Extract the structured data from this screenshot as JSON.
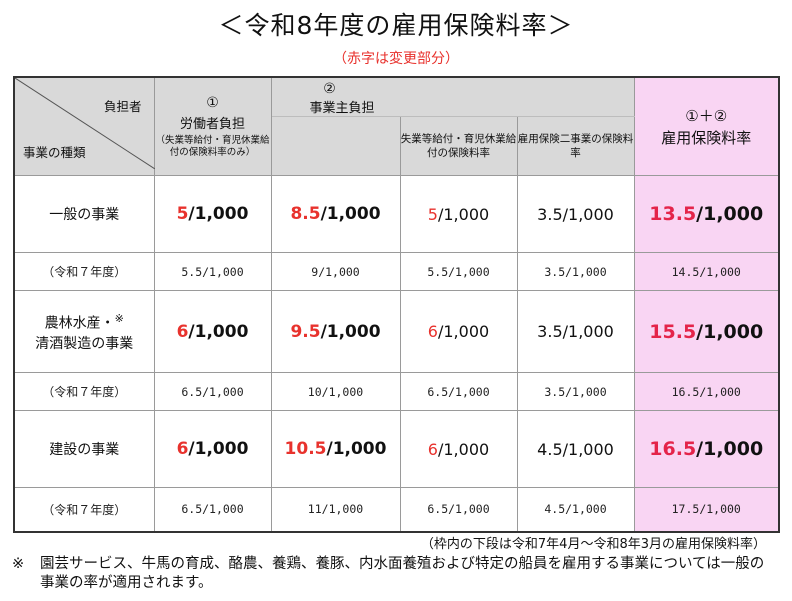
{
  "title": "＜令和8年度の雇用保険料率＞",
  "subtitle": "（赤字は変更部分）",
  "header": {
    "corner_payer": "負担者",
    "corner_kind": "事業の種類",
    "col1_num": "①",
    "col1_label": "労働者負担",
    "col1_note": "（失業等給付・育児休業給付の保険料率のみ）",
    "col2_num": "②",
    "col2_label": "事業主負担",
    "col2_sub1": "失業等給付・育児休業給付の保険料率",
    "col2_sub2": "雇用保険二事業の保険料率",
    "col3_formula": "①＋②",
    "col3_label": "雇用保険料率"
  },
  "rows": [
    {
      "category": "一般の事業",
      "worker_num": "5",
      "worker_den": "/1,000",
      "employer_num": "8.5",
      "employer_den": "/1,000",
      "emp_benefit_num": "5",
      "emp_benefit_den": "/1,000",
      "two_business": "3.5/1,000",
      "total_num": "13.5",
      "total_den": "/1,000",
      "prev_label": "（令和７年度）",
      "prev_worker": "5.5/1,000",
      "prev_employer": "9/1,000",
      "prev_emp_benefit": "5.5/1,000",
      "prev_two_business": "3.5/1,000",
      "prev_total": "14.5/1,000"
    },
    {
      "category_line1": "農林水産・",
      "category_mark": "※",
      "category_line2": "清酒製造の事業",
      "worker_num": "6",
      "worker_den": "/1,000",
      "employer_num": "9.5",
      "employer_den": "/1,000",
      "emp_benefit_num": "6",
      "emp_benefit_den": "/1,000",
      "two_business": "3.5/1,000",
      "total_num": "15.5",
      "total_den": "/1,000",
      "prev_label": "（令和７年度）",
      "prev_worker": "6.5/1,000",
      "prev_employer": "10/1,000",
      "prev_emp_benefit": "6.5/1,000",
      "prev_two_business": "3.5/1,000",
      "prev_total": "16.5/1,000"
    },
    {
      "category": "建設の事業",
      "worker_num": "6",
      "worker_den": "/1,000",
      "employer_num": "10.5",
      "employer_den": "/1,000",
      "emp_benefit_num": "6",
      "emp_benefit_den": "/1,000",
      "two_business": "4.5/1,000",
      "total_num": "16.5",
      "total_den": "/1,000",
      "prev_label": "（令和７年度）",
      "prev_worker": "6.5/1,000",
      "prev_employer": "11/1,000",
      "prev_emp_benefit": "6.5/1,000",
      "prev_two_business": "4.5/1,000",
      "prev_total": "17.5/1,000"
    }
  ],
  "footnote_period": "（枠内の下段は令和7年4月～令和8年3月の雇用保険料率）",
  "footnote_mark": "※",
  "footnote_text": "園芸サービス、牛馬の育成、酪農、養鶏、養豚、内水面養殖および特定の船員を雇用する事業については一般の事業の率が適用されます。",
  "colors": {
    "accent_red": "#e8322d",
    "pink_bg": "#f9d5f3",
    "header_bg": "#d9d9d9"
  }
}
